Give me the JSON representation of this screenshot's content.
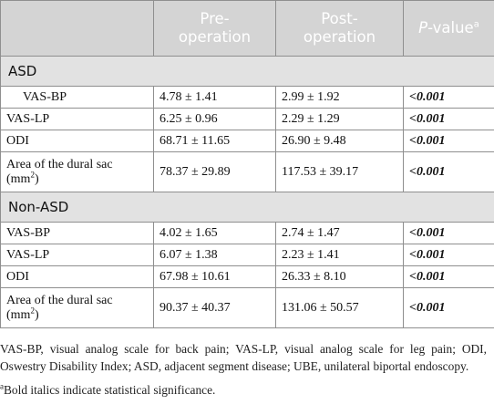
{
  "table": {
    "headers": {
      "col1": "",
      "col2_line1": "Pre-",
      "col2_line2": "operation",
      "col3_line1": "Post-",
      "col3_line2": "operation",
      "col4_italic": "P",
      "col4_rest": "-value",
      "col4_sup": "a"
    },
    "groups": [
      {
        "name": "ASD",
        "rows": [
          {
            "label": "VAS-BP",
            "pre": "4.78 ± 1.41",
            "post": "2.99 ± 1.92",
            "p": "<0.001"
          },
          {
            "label": "VAS-LP",
            "pre": "6.25 ± 0.96",
            "post": "2.29 ± 1.29",
            "p": "<0.001"
          },
          {
            "label": "ODI",
            "pre": "68.71 ± 11.65",
            "post": "26.90 ± 9.48",
            "p": "<0.001"
          },
          {
            "label_main": "Area of the dural sac (mm",
            "label_sup": "2",
            "label_end": ")",
            "pre": "78.37 ± 29.89",
            "post": "117.53 ± 39.17",
            "p": "<0.001"
          }
        ]
      },
      {
        "name": "Non-ASD",
        "rows": [
          {
            "label": "VAS-BP",
            "pre": "4.02 ± 1.65",
            "post": "2.74 ± 1.47",
            "p": "<0.001"
          },
          {
            "label": "VAS-LP",
            "pre": "6.07 ± 1.38",
            "post": "2.23 ± 1.41",
            "p": "<0.001"
          },
          {
            "label": "ODI",
            "pre": "67.98 ± 10.61",
            "post": "26.33 ± 8.10",
            "p": "<0.001"
          },
          {
            "label_main": "Area of the dural sac (mm",
            "label_sup": "2",
            "label_end": ")",
            "pre": "90.37 ± 40.37",
            "post": "131.06 ± 50.57",
            "p": "<0.001"
          }
        ]
      }
    ]
  },
  "footnotes": {
    "abbreviations": "VAS-BP, visual analog scale for back pain; VAS-LP, visual analog scale for leg pain; ODI, Oswestry Disability Index; ASD, adjacent segment disease; UBE, unilateral biportal endoscopy.",
    "sig_mark": "a",
    "significance": "Bold italics indicate statistical significance."
  },
  "colors": {
    "header_bg": "#d4d4d4",
    "group_bg": "#e2e2e2",
    "border": "#8f8f8f"
  }
}
